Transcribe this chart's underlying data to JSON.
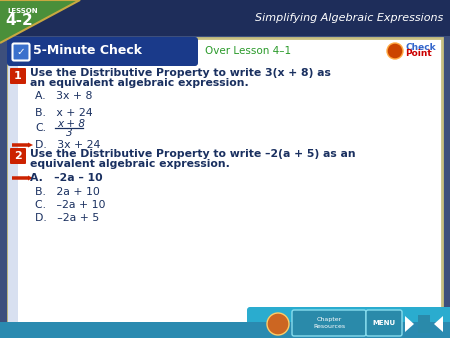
{
  "bg_color": "#3d4f7c",
  "top_bar_color": "#1e2d5a",
  "card_color": "#ffffff",
  "card_border": "#c8c080",
  "lesson_label": "LESSON",
  "lesson_number": "4-2",
  "title_bar": "Simplifying Algebraic Expressions",
  "check_label": "5-Minute Check",
  "over_label": "Over Lesson 4–1",
  "green_tri_color": "#4a8f3a",
  "green_tri_dark": "#3a7030",
  "check_bar_color": "#1a3a8a",
  "check_bar_light": "#2a50b0",
  "bottom_bar_color": "#2a8ab0",
  "q1_badge_color": "#cc2200",
  "q1_text1": "Use the Distributive Property to write 3(x + 8) as",
  "q1_text2": "an equivalent algebraic expression.",
  "q1_a": "A.   3x + 8",
  "q1_b": "B.   x + 24",
  "q1_c_label": "C.",
  "q1_c_top": "x + 8",
  "q1_c_bot": "3",
  "q1_d": "D.   3x + 24",
  "q2_text1": "Use the Distributive Property to write –2(a + 5) as an",
  "q2_text2": "equivalent algebraic expression.",
  "q2_a": "A.   –2a – 10",
  "q2_b": "B.   2a + 10",
  "q2_c": "C.   –2a + 10",
  "q2_d": "D.   –2a + 5",
  "text_color_dark": "#1a3060",
  "text_color_answer": "#1a3060",
  "arrow_color": "#cc2200",
  "over_text_color": "#2a9a2a",
  "checkpoint_red": "#cc0000",
  "checkpoint_blue": "#3366cc"
}
